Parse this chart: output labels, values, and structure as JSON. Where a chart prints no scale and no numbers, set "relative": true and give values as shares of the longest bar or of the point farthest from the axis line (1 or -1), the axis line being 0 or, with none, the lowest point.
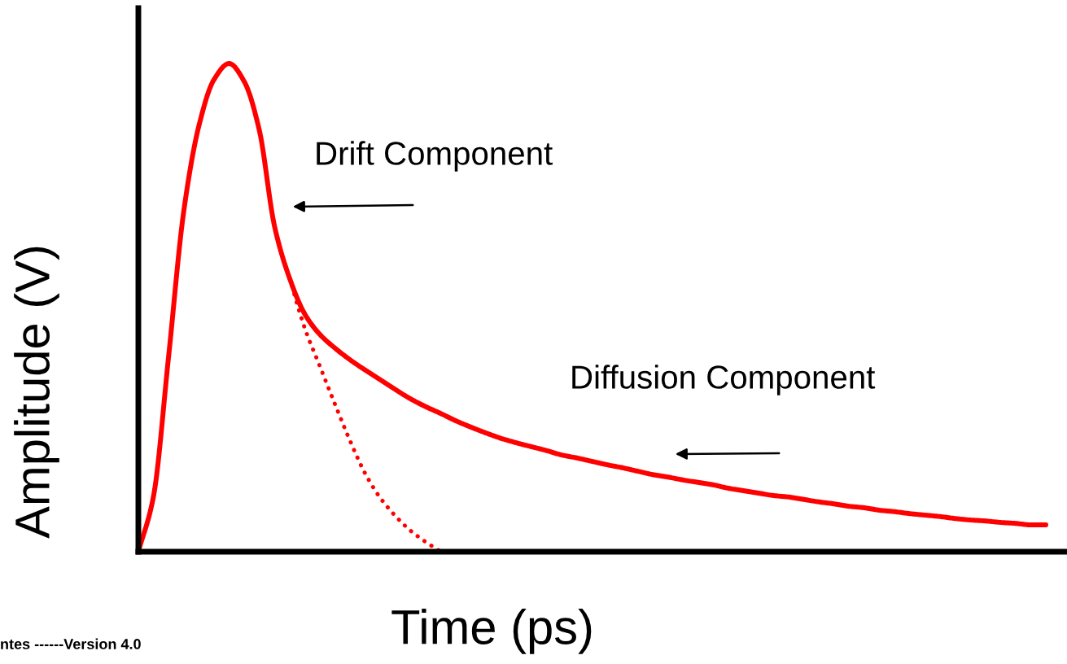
{
  "chart_data": {
    "type": "line",
    "relative": true,
    "xlabel": "Time (ps)",
    "ylabel": "Amplitude (V)",
    "categories": [
      null,
      null,
      null,
      null,
      null,
      null,
      null,
      null,
      null,
      null,
      null,
      null,
      null,
      null,
      null,
      null,
      null,
      null,
      null,
      null,
      null,
      null,
      null,
      null,
      null,
      null,
      null,
      null,
      null,
      null,
      null,
      null,
      null,
      null,
      null,
      null,
      null,
      null,
      null,
      null,
      null,
      null,
      null,
      null,
      null,
      null,
      null,
      null,
      null,
      null,
      null,
      null,
      null,
      null,
      null,
      null,
      null,
      null,
      null,
      null,
      null
    ],
    "series": [
      {
        "color": "#ff0000",
        "line_style": "solid",
        "values": [
          0,
          0.113,
          0.4,
          0.697,
          0.872,
          0.967,
          1.0,
          0.963,
          0.863,
          0.667,
          0.56,
          0.487,
          0.445,
          0.417,
          0.393,
          0.372,
          0.352,
          0.332,
          0.313,
          0.297,
          0.283,
          0.268,
          0.255,
          0.243,
          0.232,
          0.223,
          0.215,
          0.207,
          0.198,
          0.192,
          0.185,
          0.178,
          0.172,
          0.165,
          0.158,
          0.153,
          0.147,
          0.142,
          0.137,
          0.13,
          0.125,
          0.12,
          0.115,
          0.112,
          0.107,
          0.102,
          0.098,
          0.093,
          0.09,
          0.085,
          0.082,
          0.078,
          0.075,
          0.072,
          0.068,
          0.065,
          0.063,
          0.06,
          0.058,
          0.055,
          0.055
        ]
      },
      {
        "color": "#ff0000",
        "line_style": "dotted",
        "values": [
          null,
          null,
          null,
          null,
          null,
          null,
          null,
          null,
          null,
          null,
          0.56,
          0.458,
          0.38,
          0.302,
          0.227,
          0.16,
          0.11,
          0.073,
          0.043,
          0.02,
          0,
          null,
          null,
          null,
          null,
          null,
          null,
          null,
          null,
          null,
          null,
          null,
          null,
          null,
          null,
          null,
          null,
          null,
          null,
          null,
          null,
          null,
          null,
          null,
          null,
          null,
          null,
          null,
          null,
          null,
          null,
          null,
          null,
          null,
          null,
          null,
          null,
          null,
          null,
          null,
          null
        ]
      }
    ],
    "annotations": [
      "Drift Component",
      "Diffusion Component",
      "ntes ------Version 4.0"
    ]
  }
}
